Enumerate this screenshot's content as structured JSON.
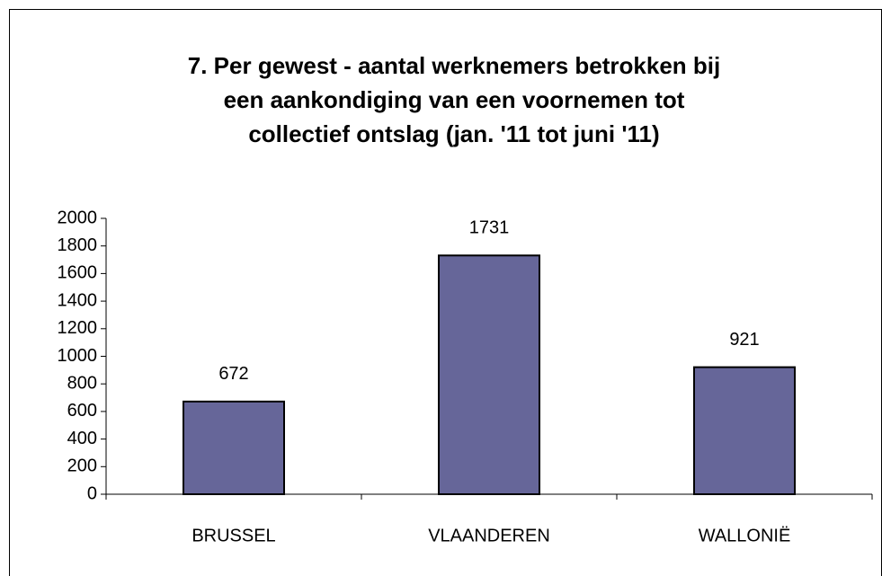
{
  "chart_data": {
    "type": "bar",
    "title": [
      "7. Per gewest - aantal werknemers betrokken bij",
      "een aankondiging van een voornemen tot",
      "collectief ontslag (jan. '11 tot juni '11)"
    ],
    "categories": [
      "BRUSSEL",
      "VLAANDEREN",
      "WALLONIË"
    ],
    "values": [
      672,
      1731,
      921
    ],
    "color": "#666699",
    "ylim": [
      0,
      2000
    ],
    "yticks": [
      0,
      200,
      400,
      600,
      800,
      1000,
      1200,
      1400,
      1600,
      1800,
      2000
    ],
    "grid": false
  }
}
